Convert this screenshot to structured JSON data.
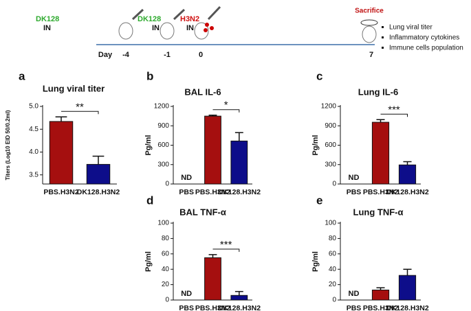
{
  "timeline": {
    "day_label": "Day",
    "days": [
      "-4",
      "-1",
      "0",
      "7"
    ],
    "events": [
      {
        "agent": "DK128",
        "route": "IN"
      },
      {
        "agent": "DK128",
        "route": "IN"
      },
      {
        "agent": "H3N2",
        "route": "IN"
      },
      {
        "agent": "Sacrifice"
      }
    ],
    "readouts": [
      "Lung viral titer",
      "Inflammatory cytokines",
      "Immune cells population"
    ]
  },
  "chart_data": [
    {
      "type": "bar",
      "panel": "a",
      "title": "Lung viral titer",
      "y_label": "Titers (Log10 EID 50/0.2ml)",
      "categories": [
        "PBS.H3N2",
        "DK128.H3N2"
      ],
      "values": [
        4.67,
        3.73
      ],
      "errors": [
        0.1,
        0.18
      ],
      "colors": [
        "#a50f0f",
        "#0d0d8a"
      ],
      "ylim": [
        3.3,
        5.0
      ],
      "yticks": [
        {
          "value": 3.5,
          "label": "3.5"
        },
        {
          "value": 4.0,
          "label": "4.0"
        },
        {
          "value": 4.5,
          "label": "4.5"
        },
        {
          "value": 5.0,
          "label": "5.0"
        }
      ],
      "significance": "**"
    },
    {
      "type": "bar",
      "panel": "b",
      "title": "BAL IL-6",
      "y_label": "Pg/ml",
      "categories": [
        "PBS",
        "PBS.H3N2",
        "DK128.H3N2"
      ],
      "values": [
        null,
        1050,
        665
      ],
      "value_labels": [
        "ND",
        null,
        null
      ],
      "errors": [
        null,
        15,
        130
      ],
      "colors": [
        "#a50f0f",
        "#a50f0f",
        "#0d0d8a"
      ],
      "ylim": [
        0,
        1200
      ],
      "yticks": [
        0,
        300,
        600,
        900,
        1200
      ],
      "significance": "*"
    },
    {
      "type": "bar",
      "panel": "c",
      "title": "Lung IL-6",
      "y_label": "Pg/ml",
      "categories": [
        "PBS",
        "PBS.H3N2",
        "DK128.H3N2"
      ],
      "values": [
        null,
        955,
        295
      ],
      "value_labels": [
        "ND",
        null,
        null
      ],
      "errors": [
        null,
        40,
        50
      ],
      "colors": [
        "#a50f0f",
        "#a50f0f",
        "#0d0d8a"
      ],
      "ylim": [
        0,
        1200
      ],
      "yticks": [
        0,
        300,
        600,
        900,
        1200
      ],
      "significance": "***"
    },
    {
      "type": "bar",
      "panel": "d",
      "title": "BAL TNF-α",
      "y_label": "Pg/ml",
      "categories": [
        "PBS",
        "PBS.H3N2",
        "DK128.H3N2"
      ],
      "values": [
        null,
        55,
        6
      ],
      "value_labels": [
        "ND",
        null,
        null
      ],
      "errors": [
        null,
        4,
        5
      ],
      "colors": [
        "#a50f0f",
        "#a50f0f",
        "#0d0d8a"
      ],
      "ylim": [
        0,
        100
      ],
      "yticks": [
        0,
        20,
        40,
        60,
        80,
        100
      ],
      "significance": "***"
    },
    {
      "type": "bar",
      "panel": "e",
      "title": "Lung TNF-α",
      "y_label": "Pg/ml",
      "categories": [
        "PBS",
        "PBS.H3N2",
        "DK128.H3N2"
      ],
      "values": [
        null,
        13,
        32
      ],
      "value_labels": [
        "ND",
        null,
        null
      ],
      "errors": [
        null,
        3,
        8
      ],
      "colors": [
        "#a50f0f",
        "#a50f0f",
        "#0d0d8a"
      ],
      "ylim": [
        0,
        100
      ],
      "yticks": [
        0,
        20,
        40,
        60,
        80,
        100
      ]
    }
  ]
}
